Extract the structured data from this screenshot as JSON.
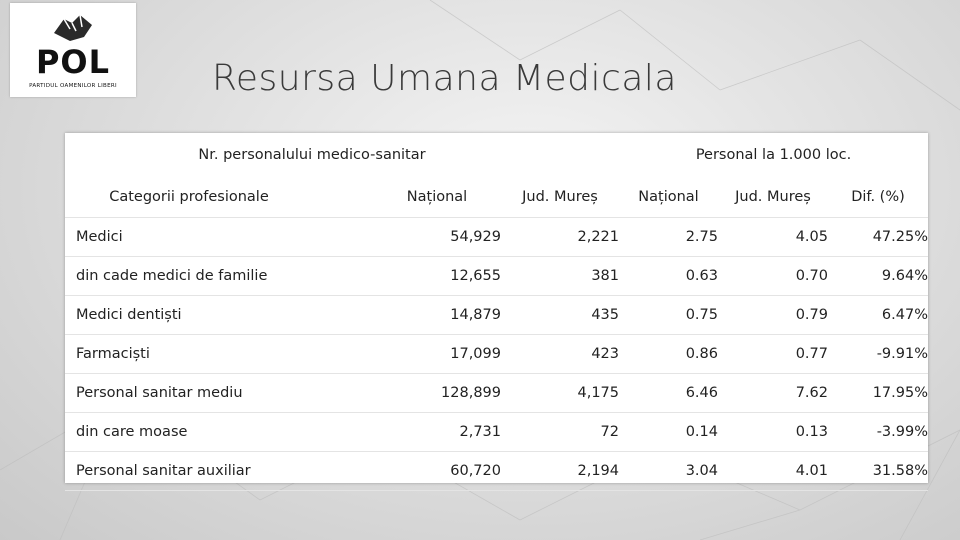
{
  "logo": {
    "name": "POL",
    "subtitle": "PARTIDUL OAMENILOR LIBERI"
  },
  "title": "Resursa Umana Medicala",
  "table": {
    "group_headers": [
      "Nr. personalului medico-sanitar",
      "Personal la 1.000 loc."
    ],
    "columns": [
      "Categorii profesionale",
      "Național",
      "Jud. Mureș",
      "Național",
      "Jud. Mureș",
      "Dif. (%)"
    ],
    "rows": [
      [
        "Medici",
        "54,929",
        "2,221",
        "2.75",
        "4.05",
        "47.25%"
      ],
      [
        "din cade medici de familie",
        "12,655",
        "381",
        "0.63",
        "0.70",
        "9.64%"
      ],
      [
        "Medici dentiști",
        "14,879",
        "435",
        "0.75",
        "0.79",
        "6.47%"
      ],
      [
        "Farmaciști",
        "17,099",
        "423",
        "0.86",
        "0.77",
        "-9.91%"
      ],
      [
        "Personal sanitar mediu",
        "128,899",
        "4,175",
        "6.46",
        "7.62",
        "17.95%"
      ],
      [
        "din care moase",
        "2,731",
        "72",
        "0.14",
        "0.13",
        "-3.99%"
      ],
      [
        "Personal sanitar auxiliar",
        "60,720",
        "2,194",
        "3.04",
        "4.01",
        "31.58%"
      ]
    ]
  }
}
